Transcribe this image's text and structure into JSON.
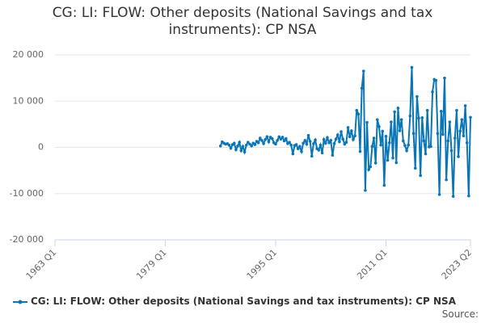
{
  "chart_data": {
    "type": "line",
    "title": "CG: LI: FLOW: Other deposits (National Savings and tax instruments): CP NSA",
    "source": "Source:",
    "xlim": [
      1963,
      2023.25
    ],
    "xticks": [
      {
        "value": 1963,
        "label": "1963 Q1"
      },
      {
        "value": 1979,
        "label": "1979 Q1"
      },
      {
        "value": 1995,
        "label": "1995 Q1"
      },
      {
        "value": 2011,
        "label": "2011 Q1"
      },
      {
        "value": 2023.25,
        "label": "2023 Q2"
      }
    ],
    "ylim": [
      -20000,
      20000
    ],
    "yticks": [
      {
        "value": -20000,
        "label": "-20 000"
      },
      {
        "value": -10000,
        "label": "-10 000"
      },
      0,
      {
        "value": 10000,
        "label": "10 000"
      },
      {
        "value": 20000,
        "label": "20 000"
      }
    ],
    "grid": true,
    "legend": "bottom",
    "x": [
      1987,
      1987.25,
      1987.5,
      1987.75,
      1988,
      1988.25,
      1988.5,
      1988.75,
      1989,
      1989.25,
      1989.5,
      1989.75,
      1990,
      1990.25,
      1990.5,
      1990.75,
      1991,
      1991.25,
      1991.5,
      1991.75,
      1992,
      1992.25,
      1992.5,
      1992.75,
      1993,
      1993.25,
      1993.5,
      1993.75,
      1994,
      1994.25,
      1994.5,
      1994.75,
      1995,
      1995.25,
      1995.5,
      1995.75,
      1996,
      1996.25,
      1996.5,
      1996.75,
      1997,
      1997.25,
      1997.5,
      1997.75,
      1998,
      1998.25,
      1998.5,
      1998.75,
      1999,
      1999.25,
      1999.5,
      1999.75,
      2000,
      2000.25,
      2000.5,
      2000.75,
      2001,
      2001.25,
      2001.5,
      2001.75,
      2002,
      2002.25,
      2002.5,
      2002.75,
      2003,
      2003.25,
      2003.5,
      2003.75,
      2004,
      2004.25,
      2004.5,
      2004.75,
      2005,
      2005.25,
      2005.5,
      2005.75,
      2006,
      2006.25,
      2006.5,
      2006.75,
      2007,
      2007.25,
      2007.5,
      2007.75,
      2008,
      2008.25,
      2008.5,
      2008.75,
      2009,
      2009.25,
      2009.5,
      2009.75,
      2010,
      2010.25,
      2010.5,
      2010.75,
      2011,
      2011.25,
      2011.5,
      2011.75,
      2012,
      2012.25,
      2012.5,
      2012.75,
      2013,
      2013.25,
      2013.5,
      2013.75,
      2014,
      2014.25,
      2014.5,
      2014.75,
      2015,
      2015.25,
      2015.5,
      2015.75,
      2016,
      2016.25,
      2016.5,
      2016.75,
      2017,
      2017.25,
      2017.5,
      2017.75,
      2018,
      2018.25,
      2018.5,
      2018.75,
      2019,
      2019.25,
      2019.5,
      2019.75,
      2020,
      2020.25,
      2020.5,
      2020.75,
      2021,
      2021.25,
      2021.5,
      2021.75,
      2022,
      2022.25,
      2022.5,
      2022.75,
      2023,
      2023.25
    ],
    "series": [
      {
        "name": "CG: LI: FLOW: Other deposits (National Savings and tax instruments): CP NSA",
        "color": "#0a76b6",
        "values": [
          300,
          1200,
          900,
          700,
          800,
          500,
          -200,
          600,
          900,
          -500,
          300,
          1100,
          -700,
          200,
          -1000,
          500,
          1100,
          700,
          300,
          900,
          600,
          1300,
          1000,
          2000,
          1500,
          800,
          1700,
          2300,
          1200,
          2200,
          1900,
          1000,
          700,
          1500,
          2300,
          1800,
          2200,
          1400,
          1900,
          800,
          1100,
          500,
          -1400,
          400,
          600,
          -300,
          200,
          -900,
          900,
          1500,
          700,
          2600,
          1300,
          -1900,
          800,
          1600,
          -300,
          -600,
          500,
          -1200,
          1700,
          900,
          2100,
          1000,
          1500,
          -1700,
          800,
          1800,
          2700,
          1200,
          3400,
          1800,
          700,
          1100,
          4300,
          2300,
          3600,
          1700,
          2500,
          8000,
          7200,
          -900,
          12800,
          16500,
          -9300,
          5400,
          -4800,
          -4200,
          200,
          2000,
          -3400,
          6000,
          4500,
          500,
          3500,
          -8200,
          2400,
          -2800,
          1000,
          5500,
          -2300,
          7700,
          -3300,
          8500,
          3600,
          6000,
          1400,
          400,
          -700,
          500,
          6800,
          17300,
          3000,
          -4500,
          11000,
          6300,
          -6100,
          6400,
          1400,
          -1400,
          8000,
          100,
          200,
          12000,
          14700,
          14500,
          3000,
          -10200,
          7800,
          2800,
          15000,
          -7000,
          1400,
          5500,
          -700,
          -10600,
          2000,
          8000,
          -2000,
          3500,
          6000,
          2500,
          9000,
          1000,
          -10500,
          6500
        ]
      }
    ]
  }
}
